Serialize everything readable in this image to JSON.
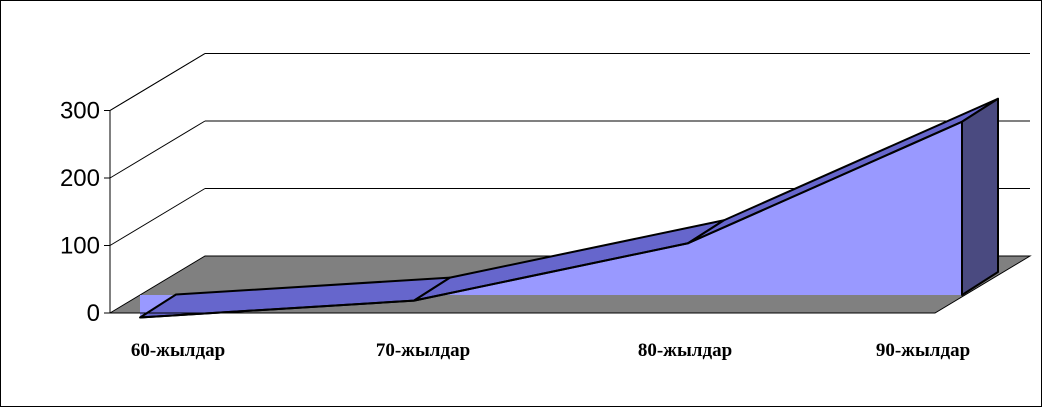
{
  "chart_data": {
    "type": "area",
    "projection": "3d",
    "categories": [
      "60-жылдар",
      "70-жылдар",
      "80-жылдар",
      "90-жылдар"
    ],
    "series": [
      {
        "values": [
          20,
          45,
          130,
          310
        ]
      }
    ],
    "ylim": [
      0,
      300
    ],
    "yticks": [
      0,
      100,
      200,
      300
    ],
    "ytick_labels": [
      "0",
      "100",
      "200",
      "300"
    ],
    "grid": true,
    "legend": "none",
    "colors": {
      "area_front": "#9999ff",
      "area_top": "#6666cc",
      "area_side": "#4a4a80",
      "floor": "#808080",
      "outline": "#000000",
      "grid": "#000000"
    }
  }
}
